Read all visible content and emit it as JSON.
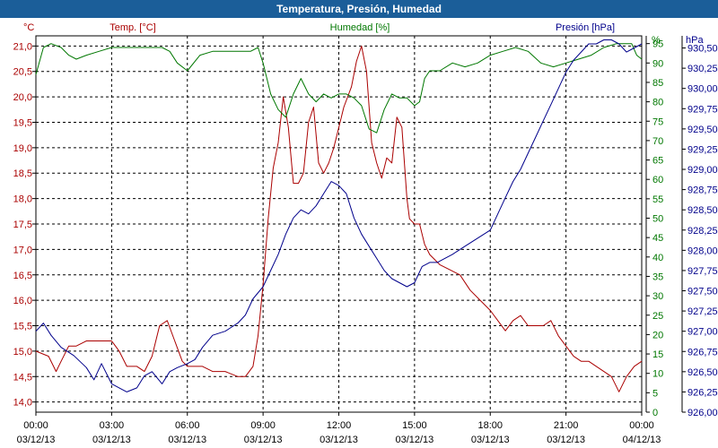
{
  "title": "Temperatura, Presión, Humedad",
  "chart_data": {
    "type": "line",
    "x_ticks": [
      {
        "time": "00:00",
        "date": "03/12/13"
      },
      {
        "time": "03:00",
        "date": "03/12/13"
      },
      {
        "time": "06:00",
        "date": "03/12/13"
      },
      {
        "time": "09:00",
        "date": "03/12/13"
      },
      {
        "time": "12:00",
        "date": "03/12/13"
      },
      {
        "time": "15:00",
        "date": "03/12/13"
      },
      {
        "time": "18:00",
        "date": "03/12/13"
      },
      {
        "time": "21:00",
        "date": "03/12/13"
      },
      {
        "time": "00:00",
        "date": "04/12/13"
      }
    ],
    "xlim": [
      0,
      24
    ],
    "grid": true,
    "axes": {
      "temp": {
        "label": "Temp. [°C]",
        "unit": "°C",
        "ylim": [
          13.8,
          21.2
        ],
        "ticks": [
          "14,0",
          "14,5",
          "15,0",
          "15,5",
          "16,0",
          "16,5",
          "17,0",
          "17,5",
          "18,0",
          "18,5",
          "19,0",
          "19,5",
          "20,0",
          "20,5",
          "21,0"
        ],
        "color": "#aa0000"
      },
      "hum": {
        "label": "Humedad [%]",
        "unit": "%",
        "ylim": [
          0,
          97
        ],
        "ticks": [
          "0",
          "5",
          "10",
          "15",
          "20",
          "25",
          "30",
          "35",
          "40",
          "45",
          "50",
          "55",
          "60",
          "65",
          "70",
          "75",
          "80",
          "85",
          "90",
          "95"
        ],
        "color": "#007700"
      },
      "pres": {
        "label": "Presión [hPa]",
        "unit": "hPa",
        "ylim": [
          926.0,
          930.65
        ],
        "ticks": [
          "926,00",
          "926,25",
          "926,50",
          "926,75",
          "927,00",
          "927,25",
          "927,50",
          "927,75",
          "928,00",
          "928,25",
          "928,50",
          "928,75",
          "929,00",
          "929,25",
          "929,50",
          "929,75",
          "930,00",
          "930,25",
          "930,50"
        ],
        "color": "#00008b"
      }
    },
    "series": [
      {
        "name": "Temp. [°C]",
        "axis": "temp",
        "color": "#aa0000",
        "x": [
          0,
          0.5,
          0.8,
          1,
          1.3,
          1.6,
          2,
          2.3,
          2.6,
          3,
          3.3,
          3.6,
          4,
          4.3,
          4.6,
          4.9,
          5.2,
          5.5,
          5.8,
          6,
          6.3,
          6.6,
          7,
          7.5,
          8,
          8.3,
          8.6,
          8.8,
          9,
          9.2,
          9.4,
          9.6,
          9.8,
          10,
          10.2,
          10.4,
          10.6,
          10.8,
          11,
          11.2,
          11.4,
          11.6,
          11.8,
          12,
          12.2,
          12.5,
          12.7,
          12.9,
          13.1,
          13.3,
          13.5,
          13.7,
          13.9,
          14.1,
          14.3,
          14.5,
          14.7,
          14.8,
          15,
          15.2,
          15.4,
          15.6,
          16,
          16.4,
          16.8,
          17.2,
          17.6,
          18,
          18.3,
          18.6,
          18.9,
          19.2,
          19.5,
          19.8,
          20.1,
          20.4,
          20.7,
          21,
          21.3,
          21.6,
          21.9,
          22.2,
          22.5,
          22.8,
          23.1,
          23.4,
          23.7,
          24
        ],
        "values": [
          15.0,
          14.9,
          14.6,
          14.8,
          15.1,
          15.1,
          15.2,
          15.2,
          15.2,
          15.2,
          15.0,
          14.7,
          14.7,
          14.6,
          14.9,
          15.5,
          15.6,
          15.2,
          14.8,
          14.7,
          14.7,
          14.7,
          14.6,
          14.6,
          14.5,
          14.5,
          14.7,
          15.3,
          16.3,
          17.6,
          18.6,
          19.1,
          20.0,
          19.4,
          18.3,
          18.3,
          18.5,
          19.5,
          19.8,
          18.7,
          18.5,
          18.7,
          19.0,
          19.4,
          19.8,
          20.2,
          20.7,
          21.0,
          20.5,
          19.1,
          18.7,
          18.4,
          18.8,
          18.7,
          19.6,
          19.4,
          18.0,
          17.6,
          17.5,
          17.5,
          17.1,
          16.9,
          16.7,
          16.6,
          16.5,
          16.2,
          16.0,
          15.8,
          15.6,
          15.4,
          15.6,
          15.7,
          15.5,
          15.5,
          15.5,
          15.6,
          15.3,
          15.1,
          14.9,
          14.8,
          14.8,
          14.7,
          14.6,
          14.5,
          14.2,
          14.5,
          14.7,
          14.8
        ]
      },
      {
        "name": "Humedad [%]",
        "axis": "hum",
        "color": "#007700",
        "x": [
          0,
          0.3,
          0.6,
          1,
          1.3,
          1.6,
          2,
          2.5,
          3,
          3.5,
          4,
          4.3,
          4.6,
          5,
          5.3,
          5.6,
          6,
          6.5,
          7,
          7.5,
          8,
          8.5,
          8.8,
          9,
          9.3,
          9.6,
          9.9,
          10.2,
          10.5,
          10.8,
          11.1,
          11.4,
          11.7,
          12,
          12.3,
          12.6,
          12.9,
          13.2,
          13.5,
          13.8,
          14.1,
          14.4,
          14.7,
          15,
          15.2,
          15.4,
          15.6,
          15.8,
          16,
          16.5,
          17,
          17.5,
          18,
          18.5,
          19,
          19.5,
          20,
          20.5,
          21,
          21.5,
          22,
          22.5,
          23,
          23.3,
          23.6,
          23.8,
          24
        ],
        "values": [
          87,
          94,
          95,
          94,
          92,
          91,
          92,
          93,
          94,
          94,
          94,
          94,
          94,
          94,
          93,
          90,
          88,
          92,
          93,
          93,
          93,
          93,
          94,
          90,
          82,
          78,
          76,
          82,
          86,
          82,
          80,
          82,
          81,
          82,
          82,
          81,
          79,
          73,
          72,
          78,
          82,
          81,
          81,
          79,
          80,
          86,
          88,
          88,
          88,
          90,
          89,
          90,
          92,
          93,
          94,
          93,
          90,
          89,
          90,
          91,
          92,
          94,
          95,
          95,
          95,
          92,
          91
        ]
      },
      {
        "name": "Presión [hPa]",
        "axis": "pres",
        "color": "#00008b",
        "x": [
          0,
          0.3,
          0.6,
          1,
          1.5,
          2,
          2.3,
          2.6,
          3,
          3.3,
          3.6,
          4,
          4.3,
          4.6,
          5,
          5.3,
          5.6,
          6,
          6.3,
          6.6,
          7,
          7.5,
          8,
          8.3,
          8.6,
          9,
          9.3,
          9.6,
          9.9,
          10.2,
          10.5,
          10.8,
          11.1,
          11.4,
          11.7,
          12,
          12.3,
          12.6,
          12.9,
          13.2,
          13.5,
          13.8,
          14.1,
          14.4,
          14.7,
          15,
          15.3,
          15.6,
          15.9,
          16.2,
          16.5,
          17,
          17.5,
          18,
          18.3,
          18.6,
          18.9,
          19.2,
          19.5,
          19.8,
          20.1,
          20.4,
          20.7,
          21,
          21.3,
          21.6,
          21.9,
          22.2,
          22.5,
          22.8,
          23.1,
          23.4,
          23.7,
          24
        ],
        "values": [
          927.0,
          927.1,
          926.95,
          926.8,
          926.7,
          926.55,
          926.4,
          926.6,
          926.35,
          926.3,
          926.25,
          926.3,
          926.45,
          926.5,
          926.35,
          926.5,
          926.55,
          926.6,
          926.65,
          926.8,
          926.95,
          927.0,
          927.1,
          927.2,
          927.4,
          927.55,
          927.75,
          927.95,
          928.2,
          928.4,
          928.5,
          928.45,
          928.55,
          928.7,
          928.85,
          928.8,
          928.7,
          928.4,
          928.2,
          928.05,
          927.9,
          927.75,
          927.65,
          927.6,
          927.55,
          927.6,
          927.8,
          927.85,
          927.85,
          927.9,
          927.95,
          928.05,
          928.15,
          928.25,
          928.45,
          928.65,
          928.85,
          929.0,
          929.2,
          929.4,
          929.6,
          929.8,
          930.0,
          930.2,
          930.35,
          930.45,
          930.55,
          930.55,
          930.6,
          930.6,
          930.55,
          930.45,
          930.5,
          930.55
        ]
      }
    ]
  }
}
